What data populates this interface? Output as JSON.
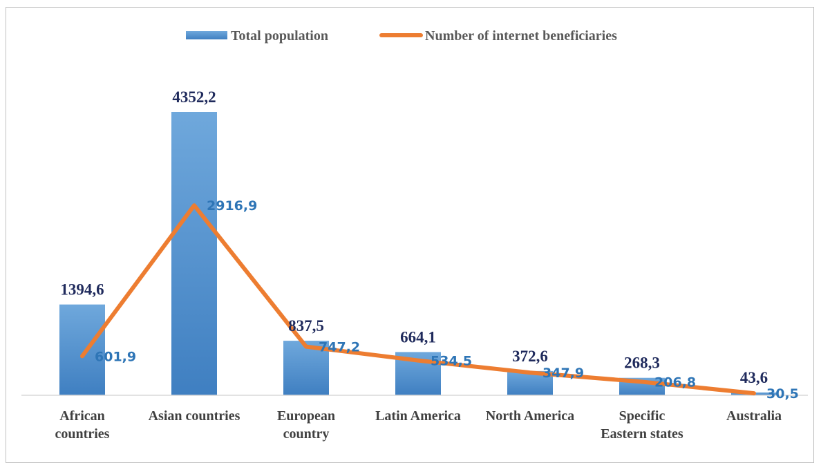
{
  "chart_data": {
    "type": "bar",
    "categories": [
      [
        "African",
        "countries"
      ],
      [
        "Asian countries"
      ],
      [
        "European",
        "country"
      ],
      [
        "Latin America"
      ],
      [
        "North America"
      ],
      [
        "Specific",
        "Eastern states"
      ],
      [
        "Australia"
      ]
    ],
    "series": [
      {
        "name": "Total population",
        "type": "bar",
        "values": [
          1394.6,
          4352.2,
          837.5,
          664.1,
          372.6,
          268.3,
          43.6
        ],
        "labels": [
          "1394,6",
          "4352,2",
          "837,5",
          "664,1",
          "372,6",
          "268,3",
          "43,6"
        ],
        "color": "#5b9bd5"
      },
      {
        "name": "Number of internet beneficiaries",
        "type": "line",
        "values": [
          601.9,
          2916.9,
          747.2,
          534.5,
          347.9,
          206.8,
          30.5
        ],
        "labels": [
          "601,9",
          "2916,9",
          "747,2",
          "534,5",
          "347,9",
          "206,8",
          "30,5"
        ],
        "color": "#ed7d31"
      }
    ],
    "ylim": [
      0,
      4352.2
    ],
    "legend_position": "top",
    "grid": false
  }
}
